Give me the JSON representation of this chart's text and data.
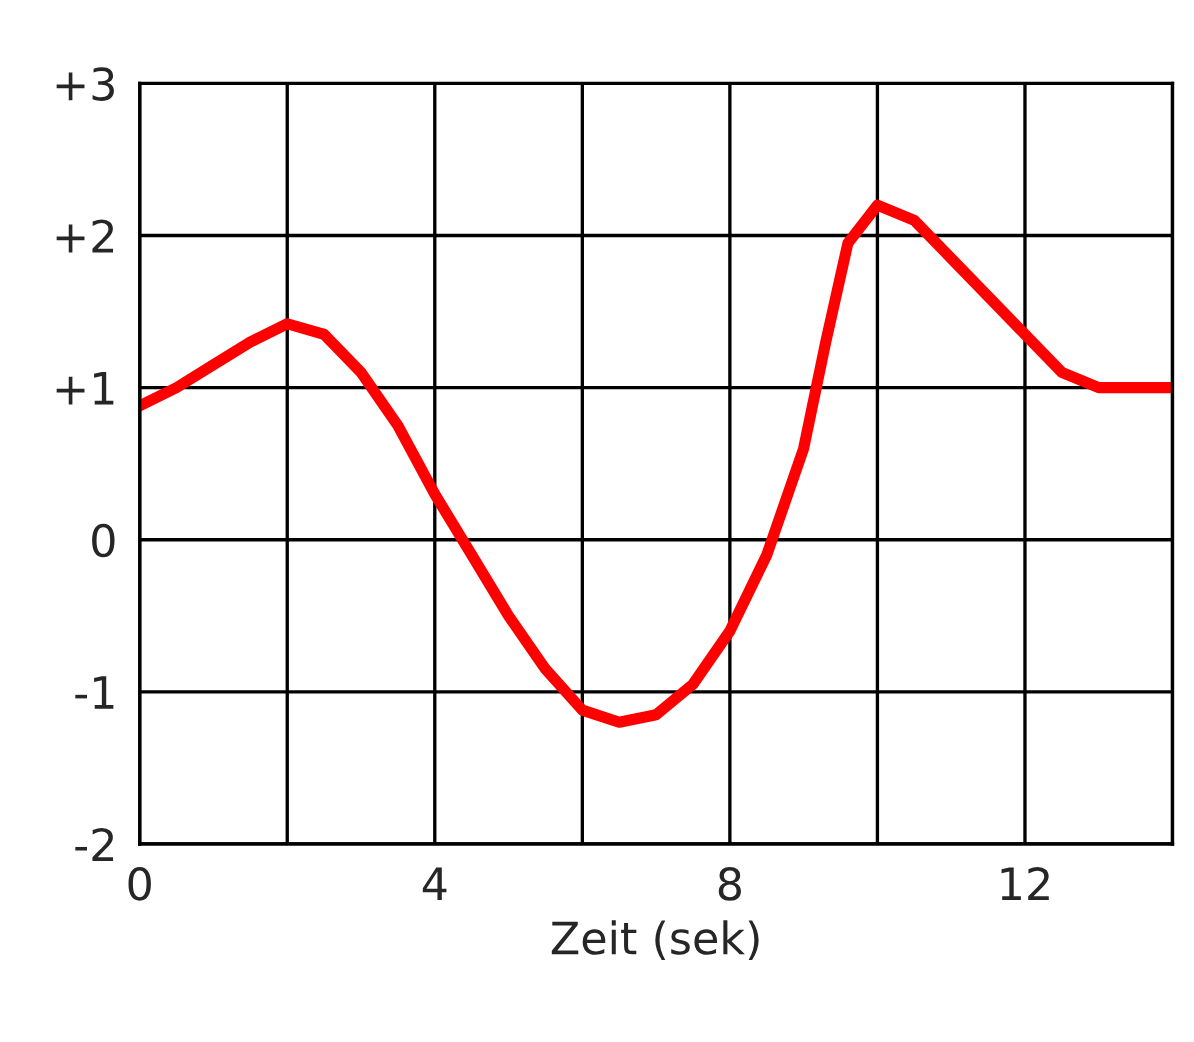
{
  "chart_data": {
    "type": "line",
    "xlabel": "Zeit (sek)",
    "x": [
      0,
      0.5,
      1,
      1.5,
      2,
      2.5,
      3,
      3.5,
      4,
      4.5,
      5,
      5.5,
      6,
      6.5,
      7,
      7.5,
      8,
      8.5,
      9,
      9.3,
      9.6,
      10,
      10.5,
      11,
      11.5,
      12,
      12.5,
      13,
      14
    ],
    "series": [
      {
        "color": "#ff0000",
        "values": [
          0.88,
          1.0,
          1.15,
          1.3,
          1.42,
          1.35,
          1.1,
          0.75,
          0.3,
          -0.1,
          -0.5,
          -0.85,
          -1.12,
          -1.2,
          -1.15,
          -0.95,
          -0.6,
          -0.1,
          0.6,
          1.3,
          1.95,
          2.2,
          2.1,
          1.85,
          1.6,
          1.35,
          1.1,
          1.0,
          1.0
        ]
      }
    ],
    "xlim": [
      0,
      14
    ],
    "ylim": [
      -2,
      3
    ],
    "xticks": [
      0,
      {
        "value": 2,
        "label": null
      },
      4,
      {
        "value": 6,
        "label": null
      },
      8,
      {
        "value": 10,
        "label": null
      },
      12,
      {
        "value": 14,
        "label": null
      }
    ],
    "yticks": [
      {
        "value": -2,
        "label": "-2"
      },
      {
        "value": -1,
        "label": "-1"
      },
      0,
      {
        "value": 1,
        "label": "+1"
      },
      {
        "value": 2,
        "label": "+2"
      },
      {
        "value": 3,
        "label": "+3"
      }
    ],
    "grid": true,
    "marker": "none",
    "line_style": "solid"
  }
}
